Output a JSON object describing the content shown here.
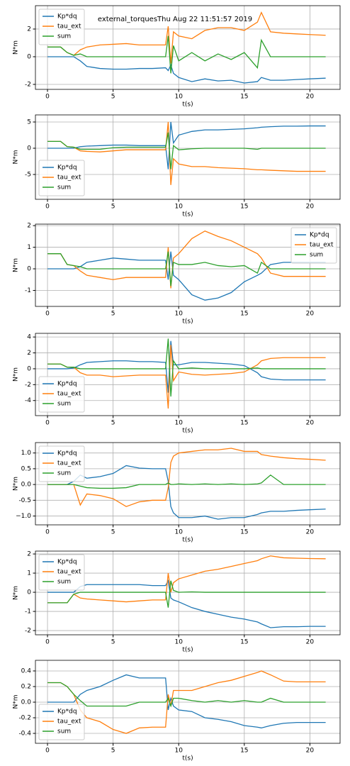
{
  "chart_data": [
    {
      "type": "line",
      "title": "external_torquesThu Aug 22 11:51:57 2019",
      "xlabel": "t(s)",
      "ylabel": "N*m",
      "grid": true,
      "legend": "upper left",
      "xlim": [
        -0.92,
        22.3
      ],
      "xticks": [
        0,
        5,
        10,
        15,
        20
      ],
      "ylim": [
        -2.36,
        3.69
      ],
      "yticks": [
        -2,
        0,
        2
      ],
      "x": [
        0,
        1,
        1.5,
        2,
        2.5,
        3,
        4,
        5,
        6,
        7,
        8,
        9,
        9.2,
        9.4,
        9.6,
        10,
        11,
        12,
        13,
        14,
        15,
        16,
        16.3,
        17,
        18,
        19,
        20,
        21.2
      ],
      "series": [
        {
          "name": "Kp*dq",
          "color": "#1f77b4",
          "values": [
            0,
            0,
            0,
            0,
            -0.3,
            -0.7,
            -0.85,
            -0.9,
            -0.9,
            -0.85,
            -0.85,
            -0.8,
            -1.0,
            -0.6,
            -1.2,
            -1.5,
            -1.8,
            -1.6,
            -1.75,
            -1.7,
            -1.9,
            -1.8,
            -1.5,
            -1.7,
            -1.7,
            -1.65,
            -1.6,
            -1.55
          ]
        },
        {
          "name": "tau_ext",
          "color": "#ff7f0e",
          "values": [
            0.7,
            0.7,
            0.3,
            0.1,
            0.5,
            0.7,
            0.85,
            0.9,
            0.95,
            0.85,
            0.85,
            0.85,
            2.2,
            -0.5,
            1.8,
            1.5,
            1.3,
            1.9,
            2.1,
            2.1,
            1.9,
            2.5,
            3.2,
            1.8,
            1.7,
            1.65,
            1.6,
            1.55
          ]
        },
        {
          "name": "sum",
          "color": "#2ca02c",
          "values": [
            0.7,
            0.7,
            0.3,
            0.1,
            0.2,
            0,
            0,
            0,
            0,
            0,
            0,
            0,
            1.5,
            -1.2,
            0.8,
            -0.3,
            0.3,
            -0.3,
            0.2,
            -0.2,
            0.3,
            -0.8,
            1.2,
            0,
            0,
            0,
            0,
            0
          ]
        }
      ]
    },
    {
      "type": "line",
      "xlabel": "t(s)",
      "ylabel": "N*m",
      "grid": true,
      "legend": "lower left",
      "xlim": [
        -0.92,
        22.3
      ],
      "xticks": [
        0,
        5,
        10,
        15,
        20
      ],
      "ylim": [
        -9.73,
        6.35
      ],
      "yticks": [
        -5,
        0,
        5
      ],
      "x": [
        0,
        1,
        1.5,
        2,
        2.5,
        3,
        4,
        5,
        6,
        7,
        8,
        9,
        9.2,
        9.4,
        9.6,
        10,
        11,
        12,
        13,
        14,
        15,
        16,
        16.3,
        17,
        18,
        19,
        20,
        21.2
      ],
      "series": [
        {
          "name": "Kp*dq",
          "color": "#1f77b4",
          "values": [
            0,
            0,
            0,
            0,
            0.3,
            0.4,
            0.5,
            0.6,
            0.6,
            0.5,
            0.5,
            0.5,
            -4,
            5,
            1,
            2.5,
            3.2,
            3.5,
            3.5,
            3.6,
            3.7,
            3.9,
            4,
            4.1,
            4.2,
            4.2,
            4.25,
            4.25
          ]
        },
        {
          "name": "tau_ext",
          "color": "#ff7f0e",
          "values": [
            1.3,
            1.3,
            0.3,
            0.2,
            -0.5,
            -0.6,
            -0.7,
            -0.5,
            -0.3,
            -0.3,
            -0.3,
            -0.3,
            5,
            -7,
            -2,
            -3,
            -3.5,
            -3.5,
            -3.7,
            -3.8,
            -3.9,
            -4.1,
            -4.1,
            -4.2,
            -4.3,
            -4.4,
            -4.4,
            -4.4
          ]
        },
        {
          "name": "sum",
          "color": "#2ca02c",
          "values": [
            1.3,
            1.3,
            0.3,
            0.2,
            -0.2,
            -0.2,
            -0.2,
            0.1,
            0.2,
            0.2,
            0.2,
            0.2,
            3,
            -4,
            0.5,
            -0.3,
            -0.1,
            0,
            0,
            0,
            0,
            -0.2,
            0,
            0,
            0,
            0,
            0,
            0
          ]
        }
      ]
    },
    {
      "type": "line",
      "xlabel": "t(s)",
      "ylabel": "N*m",
      "grid": true,
      "legend": "upper right",
      "xlim": [
        -0.92,
        22.3
      ],
      "xticks": [
        0,
        5,
        10,
        15,
        20
      ],
      "ylim": [
        -1.74,
        2.07
      ],
      "yticks": [
        -1,
        0,
        1,
        2
      ],
      "x": [
        0,
        1,
        1.5,
        2,
        2.5,
        3,
        4,
        5,
        6,
        7,
        8,
        9,
        9.2,
        9.4,
        9.6,
        10,
        11,
        12,
        13,
        14,
        15,
        16,
        16.3,
        17,
        18,
        19,
        20,
        21.2
      ],
      "series": [
        {
          "name": "Kp*dq",
          "color": "#1f77b4",
          "values": [
            0,
            0,
            0,
            0,
            0.1,
            0.3,
            0.4,
            0.5,
            0.45,
            0.4,
            0.4,
            0.4,
            -0.5,
            0.8,
            -0.3,
            -0.5,
            -1.2,
            -1.45,
            -1.35,
            -1.1,
            -0.6,
            -0.3,
            -0.2,
            0.2,
            0.3,
            0.3,
            0.3,
            0.3
          ]
        },
        {
          "name": "tau_ext",
          "color": "#ff7f0e",
          "values": [
            0.7,
            0.7,
            0.2,
            0.15,
            -0.1,
            -0.3,
            -0.4,
            -0.5,
            -0.4,
            -0.4,
            -0.4,
            -0.4,
            1.0,
            -0.9,
            0.5,
            0.7,
            1.4,
            1.75,
            1.5,
            1.3,
            1.0,
            0.7,
            0.5,
            -0.2,
            -0.35,
            -0.35,
            -0.35,
            -0.35
          ]
        },
        {
          "name": "sum",
          "color": "#2ca02c",
          "values": [
            0.7,
            0.7,
            0.2,
            0.15,
            0.1,
            0,
            0,
            0,
            0,
            0,
            0,
            0,
            0.8,
            -0.8,
            0.3,
            0.2,
            0.2,
            0.3,
            0.15,
            0.1,
            0.15,
            -0.2,
            0.3,
            0,
            0,
            0,
            0,
            0
          ]
        }
      ]
    },
    {
      "type": "line",
      "xlabel": "t(s)",
      "ylabel": "N*m",
      "grid": true,
      "legend": "lower left",
      "xlim": [
        -0.92,
        22.3
      ],
      "xticks": [
        0,
        5,
        10,
        15,
        20
      ],
      "ylim": [
        -5.9,
        4.46
      ],
      "yticks": [
        -4,
        -2,
        0,
        2,
        4
      ],
      "x": [
        0,
        1,
        1.5,
        2,
        2.5,
        3,
        4,
        5,
        6,
        7,
        8,
        9,
        9.2,
        9.4,
        9.6,
        10,
        11,
        12,
        13,
        14,
        15,
        16,
        16.3,
        17,
        18,
        19,
        20,
        21.2
      ],
      "series": [
        {
          "name": "Kp*dq",
          "color": "#1f77b4",
          "values": [
            0,
            0,
            0,
            0.1,
            0.5,
            0.8,
            0.9,
            1.0,
            1.0,
            0.9,
            0.9,
            0.8,
            -3,
            3.5,
            0.5,
            0.5,
            0.8,
            0.8,
            0.7,
            0.6,
            0.4,
            -0.5,
            -1.0,
            -1.3,
            -1.4,
            -1.4,
            -1.4,
            -1.4
          ]
        },
        {
          "name": "tau_ext",
          "color": "#ff7f0e",
          "values": [
            0.6,
            0.6,
            0.2,
            0.2,
            -0.5,
            -0.8,
            -0.8,
            -1.0,
            -0.9,
            -0.8,
            -0.8,
            -0.8,
            -5,
            3,
            -1.5,
            -0.4,
            -0.7,
            -0.8,
            -0.7,
            -0.6,
            -0.4,
            0.5,
            1.0,
            1.3,
            1.4,
            1.4,
            1.4,
            1.4
          ]
        },
        {
          "name": "sum",
          "color": "#2ca02c",
          "values": [
            0.6,
            0.6,
            0.2,
            0.2,
            0,
            0,
            0,
            0,
            0,
            0,
            0,
            0,
            3.8,
            -3.5,
            1,
            0,
            0.1,
            0,
            0,
            0,
            0,
            0.1,
            0,
            0,
            0,
            0,
            0,
            0
          ]
        }
      ]
    },
    {
      "type": "line",
      "xlabel": "t(s)",
      "ylabel": "N*m",
      "grid": true,
      "legend": "upper left",
      "xlim": [
        -0.92,
        22.3
      ],
      "xticks": [
        0,
        5,
        10,
        15,
        20
      ],
      "ylim": [
        -1.28,
        1.33
      ],
      "yticks": [
        {
          "value": -1,
          "label": "−1.0"
        },
        -0.5,
        {
          "value": 0,
          "label": "0.0"
        },
        0.5,
        {
          "value": 1,
          "label": "1.0"
        }
      ],
      "x": [
        0,
        1,
        1.5,
        2,
        2.5,
        3,
        4,
        5,
        6,
        7,
        8,
        9,
        9.2,
        9.4,
        9.6,
        10,
        11,
        12,
        13,
        14,
        15,
        16,
        16.3,
        17,
        18,
        19,
        20,
        21.2
      ],
      "series": [
        {
          "name": "Kp*dq",
          "color": "#1f77b4",
          "values": [
            0,
            0,
            0,
            0.1,
            0.3,
            0.2,
            0.25,
            0.35,
            0.6,
            0.52,
            0.5,
            0.5,
            0.1,
            -0.7,
            -0.9,
            -1.05,
            -1.05,
            -1.0,
            -1.1,
            -1.05,
            -1.05,
            -0.95,
            -0.9,
            -0.85,
            -0.85,
            -0.82,
            -0.8,
            -0.78
          ]
        },
        {
          "name": "tau_ext",
          "color": "#ff7f0e",
          "values": [
            0,
            0,
            0,
            0,
            -0.65,
            -0.3,
            -0.35,
            -0.45,
            -0.7,
            -0.55,
            -0.5,
            -0.5,
            -0.1,
            0.7,
            0.9,
            1.0,
            1.05,
            1.1,
            1.1,
            1.15,
            1.05,
            1.05,
            0.95,
            0.9,
            0.85,
            0.82,
            0.8,
            0.77
          ]
        },
        {
          "name": "sum",
          "color": "#2ca02c",
          "values": [
            0,
            0,
            0,
            0,
            -0.05,
            -0.1,
            -0.12,
            -0.12,
            -0.1,
            0,
            0,
            0,
            0.05,
            0,
            0,
            0.02,
            0,
            0.02,
            0,
            0.02,
            0,
            0.02,
            0.05,
            0.3,
            0,
            0,
            0,
            0
          ]
        }
      ]
    },
    {
      "type": "line",
      "xlabel": "t(s)",
      "ylabel": "N*m",
      "grid": true,
      "legend": "upper left",
      "xlim": [
        -0.92,
        22.3
      ],
      "xticks": [
        0,
        5,
        10,
        15,
        20
      ],
      "ylim": [
        -2.22,
        2.15
      ],
      "yticks": [
        -2,
        -1,
        0,
        1,
        2
      ],
      "x": [
        0,
        1,
        1.5,
        2,
        2.5,
        3,
        4,
        5,
        6,
        7,
        8,
        9,
        9.2,
        9.4,
        9.6,
        10,
        11,
        12,
        13,
        14,
        15,
        16,
        16.3,
        17,
        18,
        19,
        20,
        21.2
      ],
      "series": [
        {
          "name": "Kp*dq",
          "color": "#1f77b4",
          "values": [
            0,
            0,
            0,
            0,
            0.3,
            0.4,
            0.4,
            0.4,
            0.4,
            0.4,
            0.35,
            0.35,
            0.6,
            -0.3,
            -0.4,
            -0.5,
            -0.8,
            -1.0,
            -1.15,
            -1.3,
            -1.4,
            -1.55,
            -1.65,
            -1.85,
            -1.8,
            -1.8,
            -1.78,
            -1.78
          ]
        },
        {
          "name": "tau_ext",
          "color": "#ff7f0e",
          "values": [
            -0.55,
            -0.55,
            -0.55,
            -0.1,
            -0.3,
            -0.35,
            -0.4,
            -0.45,
            -0.5,
            -0.45,
            -0.4,
            -0.4,
            1.0,
            0,
            0.5,
            0.7,
            0.9,
            1.1,
            1.2,
            1.35,
            1.5,
            1.65,
            1.75,
            1.9,
            1.8,
            1.78,
            1.76,
            1.75
          ]
        },
        {
          "name": "sum",
          "color": "#2ca02c",
          "values": [
            -0.55,
            -0.55,
            -0.55,
            -0.1,
            0,
            0,
            0,
            0,
            0,
            0,
            0,
            0,
            -0.8,
            0.6,
            0.1,
            0,
            0.02,
            0,
            0,
            0,
            0,
            0,
            0,
            0,
            0,
            0,
            0,
            0
          ]
        }
      ]
    },
    {
      "type": "line",
      "xlabel": "t(s)",
      "ylabel": "N*m",
      "grid": true,
      "legend": "lower left",
      "xlim": [
        -0.92,
        22.3
      ],
      "xticks": [
        0,
        5,
        10,
        15,
        20
      ],
      "ylim": [
        -0.527,
        0.536
      ],
      "yticks": [
        -0.4,
        -0.2,
        {
          "value": 0,
          "label": "0.0"
        },
        0.2,
        0.4
      ],
      "x": [
        0,
        1,
        1.5,
        2,
        2.5,
        3,
        4,
        5,
        6,
        7,
        8,
        9,
        9.2,
        9.4,
        9.6,
        10,
        11,
        12,
        13,
        14,
        15,
        16,
        16.3,
        17,
        18,
        19,
        20,
        21.2
      ],
      "series": [
        {
          "name": "Kp*dq",
          "color": "#1f77b4",
          "values": [
            0,
            0,
            0,
            0,
            0.1,
            0.15,
            0.2,
            0.28,
            0.35,
            0.31,
            0.31,
            0.31,
            -0.1,
            0.05,
            -0.05,
            -0.1,
            -0.12,
            -0.2,
            -0.22,
            -0.25,
            -0.3,
            -0.32,
            -0.33,
            -0.3,
            -0.27,
            -0.26,
            -0.26,
            -0.26
          ]
        },
        {
          "name": "tau_ext",
          "color": "#ff7f0e",
          "values": [
            0.25,
            0.25,
            0.2,
            0.1,
            -0.1,
            -0.2,
            -0.25,
            -0.35,
            -0.4,
            -0.33,
            -0.32,
            -0.32,
            0.1,
            -0.05,
            0.15,
            0.15,
            0.15,
            0.2,
            0.25,
            0.28,
            0.33,
            0.38,
            0.4,
            0.35,
            0.27,
            0.26,
            0.26,
            0.26
          ]
        },
        {
          "name": "sum",
          "color": "#2ca02c",
          "values": [
            0.25,
            0.25,
            0.2,
            0.1,
            0.02,
            -0.05,
            -0.05,
            -0.05,
            -0.05,
            0,
            0,
            0,
            0.05,
            -0.05,
            0.05,
            0.05,
            0.02,
            0,
            0.02,
            0,
            0.02,
            0,
            0,
            0.05,
            0,
            0,
            0,
            0
          ]
        }
      ]
    }
  ]
}
